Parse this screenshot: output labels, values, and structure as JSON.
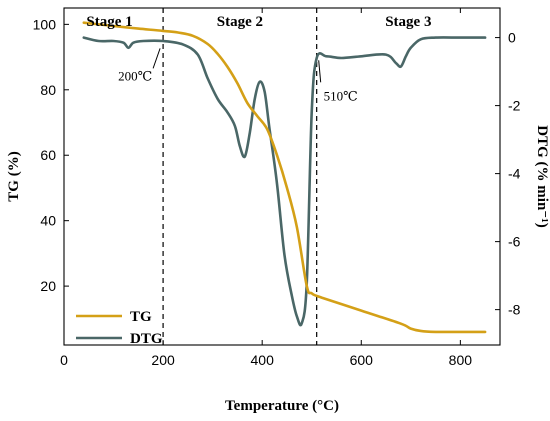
{
  "chart_data": {
    "type": "line",
    "xlabel": "Temperature (°C)",
    "ylabel_left": "TG (%)",
    "ylabel_right": "DTG (% min⁻¹)",
    "xlim": [
      0,
      880
    ],
    "ylim_left": [
      2,
      105
    ],
    "ylim_right": [
      -9.04,
      0.87
    ],
    "x_ticks": [
      0,
      200,
      400,
      600,
      800
    ],
    "y_ticks_left": [
      20,
      40,
      60,
      80,
      100
    ],
    "y_ticks_right": [
      0,
      -2,
      -4,
      -6,
      -8
    ],
    "grid": false,
    "legend_position": "bottom-left",
    "series": [
      {
        "name": "TG",
        "axis": "left",
        "color": "#d4a017",
        "x": [
          40,
          100,
          150,
          200,
          230,
          260,
          290,
          310,
          330,
          350,
          370,
          390,
          410,
          430,
          450,
          470,
          490,
          500,
          520,
          600,
          680,
          700,
          720,
          750,
          800,
          850
        ],
        "y": [
          100.5,
          99.5,
          98.7,
          98.0,
          97.5,
          96.5,
          94.0,
          91.0,
          87.0,
          82.0,
          76.0,
          72.0,
          68.0,
          60.0,
          50.0,
          38.0,
          20.0,
          17.8,
          16.5,
          12.5,
          8.5,
          7.0,
          6.3,
          6.0,
          6.0,
          6.0
        ]
      },
      {
        "name": "DTG",
        "axis": "right",
        "color": "#4a6767",
        "x": [
          40,
          70,
          100,
          120,
          130,
          140,
          160,
          200,
          240,
          270,
          290,
          310,
          330,
          345,
          355,
          365,
          375,
          385,
          395,
          405,
          415,
          430,
          445,
          460,
          470,
          480,
          490,
          500,
          510,
          530,
          560,
          600,
          650,
          670,
          680,
          690,
          700,
          720,
          750,
          800,
          850
        ],
        "y": [
          0.0,
          -0.1,
          -0.1,
          -0.15,
          -0.3,
          -0.15,
          -0.1,
          -0.1,
          -0.2,
          -0.5,
          -1.2,
          -1.8,
          -2.2,
          -2.6,
          -3.2,
          -3.5,
          -2.8,
          -1.8,
          -1.3,
          -1.6,
          -2.7,
          -4.3,
          -6.4,
          -7.6,
          -8.2,
          -8.4,
          -7.2,
          -2.2,
          -0.6,
          -0.55,
          -0.6,
          -0.55,
          -0.5,
          -0.75,
          -0.85,
          -0.55,
          -0.3,
          -0.05,
          0.0,
          0.0,
          0.0
        ]
      }
    ],
    "stages": [
      {
        "label": "Stage 1",
        "x_from": 0,
        "x_to": 200
      },
      {
        "label": "Stage 2",
        "x_from": 200,
        "x_to": 510
      },
      {
        "label": "Stage 3",
        "x_from": 510,
        "x_to": 880
      }
    ],
    "dividers": [
      200,
      510
    ],
    "annotations": [
      {
        "text": "200℃",
        "at_x": 200,
        "at_y_right": -0.2,
        "series": "DTG"
      },
      {
        "text": "510℃",
        "at_x": 510,
        "at_y_right": -0.55,
        "series": "DTG"
      }
    ]
  }
}
